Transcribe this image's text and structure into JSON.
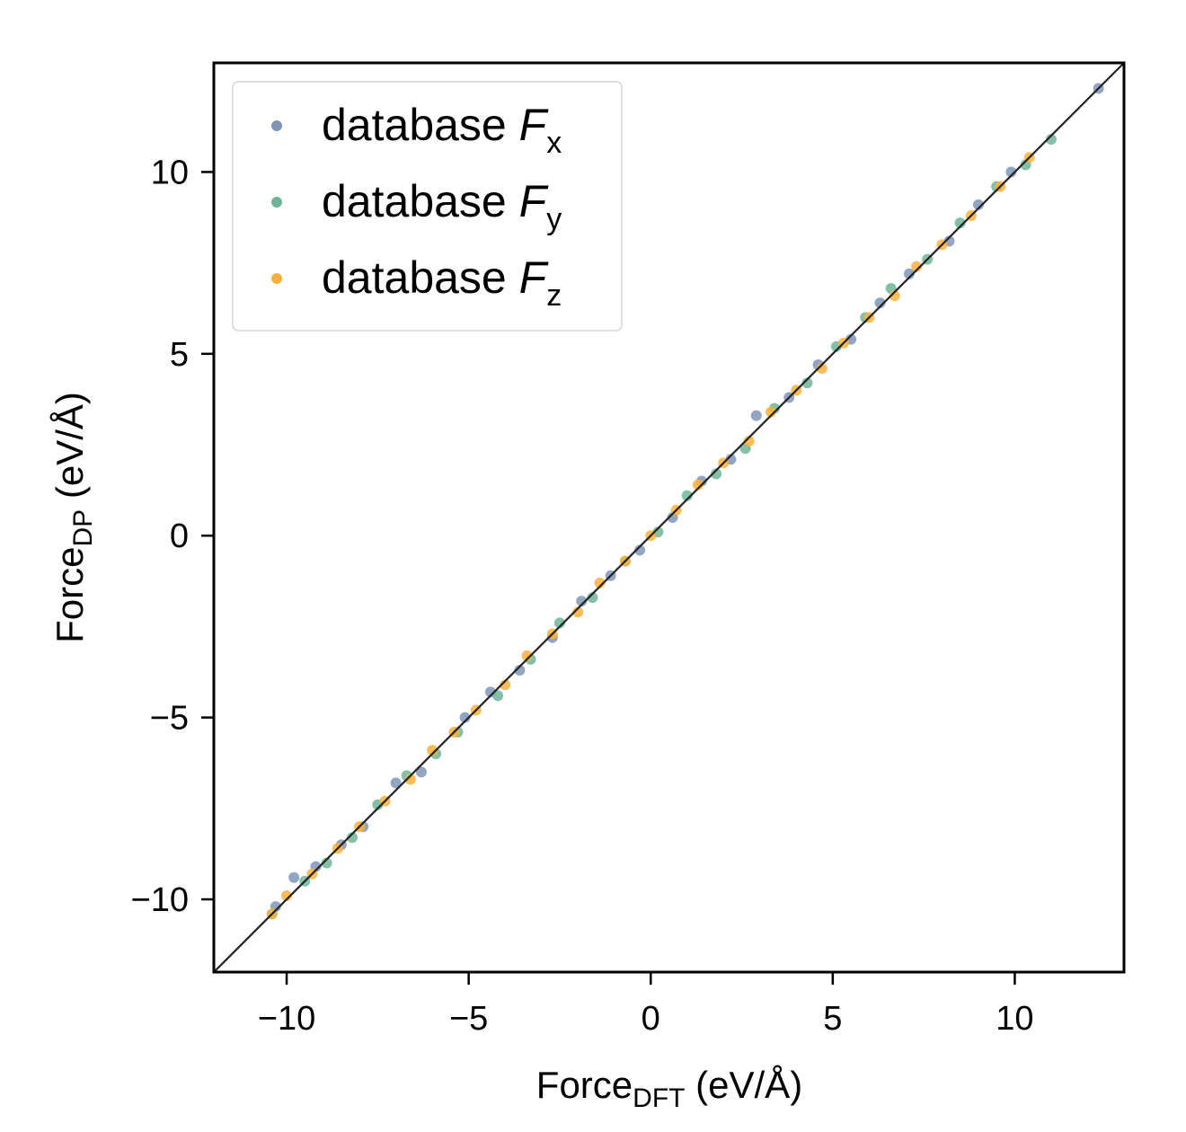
{
  "chart_data": {
    "type": "scatter",
    "xlabel": {
      "main": "Force",
      "sub": "DFT",
      "unit": " (eV/Å)"
    },
    "ylabel": {
      "main": "Force",
      "sub": "DP",
      "unit": " (eV/Å)"
    },
    "xlim": [
      -12,
      13
    ],
    "ylim": [
      -12,
      13
    ],
    "xticks": [
      -10,
      -5,
      0,
      5,
      10
    ],
    "yticks": [
      -10,
      -5,
      0,
      5,
      10
    ],
    "tick_labels": [
      "−10",
      "−5",
      "0",
      "5",
      "10"
    ],
    "grid": false,
    "legend_position": "top-left",
    "reference_line": {
      "from": [
        -12,
        -12
      ],
      "to": [
        13,
        13
      ],
      "color": "#222222"
    },
    "series": [
      {
        "name": "database F",
        "subscript": "x",
        "color": "#7f95b8",
        "points": [
          [
            12.3,
            12.3
          ],
          [
            -10.3,
            -10.2
          ],
          [
            -9.8,
            -9.4
          ],
          [
            -9.2,
            -9.1
          ],
          [
            -8.5,
            -8.5
          ],
          [
            -7.9,
            -8.0
          ],
          [
            -7.0,
            -6.8
          ],
          [
            -6.3,
            -6.5
          ],
          [
            -5.1,
            -5.0
          ],
          [
            -4.4,
            -4.3
          ],
          [
            -3.6,
            -3.7
          ],
          [
            -2.7,
            -2.8
          ],
          [
            -1.9,
            -1.8
          ],
          [
            -1.1,
            -1.1
          ],
          [
            -0.3,
            -0.4
          ],
          [
            0.6,
            0.5
          ],
          [
            1.4,
            1.5
          ],
          [
            2.2,
            2.1
          ],
          [
            2.9,
            3.3
          ],
          [
            3.8,
            3.8
          ],
          [
            4.6,
            4.7
          ],
          [
            5.5,
            5.4
          ],
          [
            6.3,
            6.4
          ],
          [
            7.1,
            7.2
          ],
          [
            8.2,
            8.1
          ],
          [
            9.0,
            9.1
          ],
          [
            9.9,
            10.0
          ]
        ]
      },
      {
        "name": "database F",
        "subscript": "y",
        "color": "#6db596",
        "points": [
          [
            11.0,
            10.9
          ],
          [
            -10.4,
            -10.4
          ],
          [
            -9.5,
            -9.5
          ],
          [
            -8.9,
            -9.0
          ],
          [
            -8.2,
            -8.3
          ],
          [
            -7.5,
            -7.4
          ],
          [
            -6.7,
            -6.6
          ],
          [
            -5.9,
            -6.0
          ],
          [
            -5.3,
            -5.4
          ],
          [
            -4.2,
            -4.4
          ],
          [
            -3.3,
            -3.4
          ],
          [
            -2.5,
            -2.4
          ],
          [
            -1.6,
            -1.7
          ],
          [
            -0.7,
            -0.7
          ],
          [
            0.2,
            0.1
          ],
          [
            1.0,
            1.1
          ],
          [
            1.8,
            1.7
          ],
          [
            2.6,
            2.4
          ],
          [
            3.4,
            3.5
          ],
          [
            4.3,
            4.2
          ],
          [
            5.1,
            5.2
          ],
          [
            5.9,
            6.0
          ],
          [
            6.6,
            6.8
          ],
          [
            7.6,
            7.6
          ],
          [
            8.5,
            8.6
          ],
          [
            9.5,
            9.6
          ],
          [
            10.3,
            10.2
          ]
        ]
      },
      {
        "name": "database F",
        "subscript": "z",
        "color": "#fbb03b",
        "points": [
          [
            -10.4,
            -10.4
          ],
          [
            -10.0,
            -9.9
          ],
          [
            -9.3,
            -9.3
          ],
          [
            -8.6,
            -8.6
          ],
          [
            -8.0,
            -8.0
          ],
          [
            -7.3,
            -7.3
          ],
          [
            -6.6,
            -6.7
          ],
          [
            -6.0,
            -5.9
          ],
          [
            -5.4,
            -5.4
          ],
          [
            -4.8,
            -4.8
          ],
          [
            -4.0,
            -4.1
          ],
          [
            -3.4,
            -3.3
          ],
          [
            -2.7,
            -2.7
          ],
          [
            -2.0,
            -2.1
          ],
          [
            -1.4,
            -1.3
          ],
          [
            -0.7,
            -0.7
          ],
          [
            0.0,
            0.0
          ],
          [
            0.7,
            0.7
          ],
          [
            1.3,
            1.4
          ],
          [
            2.0,
            2.0
          ],
          [
            2.7,
            2.6
          ],
          [
            3.3,
            3.4
          ],
          [
            4.0,
            4.0
          ],
          [
            4.7,
            4.6
          ],
          [
            5.3,
            5.3
          ],
          [
            6.0,
            6.0
          ],
          [
            6.7,
            6.6
          ],
          [
            7.3,
            7.4
          ],
          [
            8.0,
            8.0
          ],
          [
            8.8,
            8.8
          ],
          [
            9.6,
            9.6
          ],
          [
            10.4,
            10.4
          ]
        ]
      }
    ]
  }
}
